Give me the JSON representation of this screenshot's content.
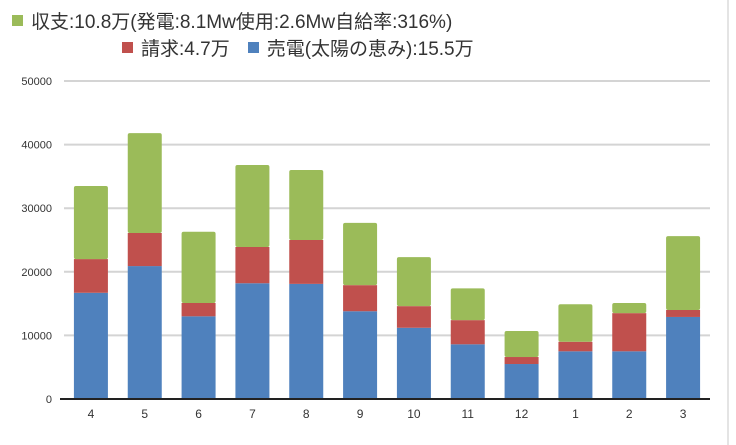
{
  "legend": {
    "green": "収支:10.8万(発電:8.1Mw使用:2.6Mw自給率:316%)",
    "red": "請求:4.7万",
    "blue": "売電(太陽の恵み):15.5万"
  },
  "colors": {
    "green": "#9bbb59",
    "red": "#c0504d",
    "blue": "#4f81bd",
    "grid": "#d4d4d4"
  },
  "chart_data": {
    "type": "bar",
    "stacked": true,
    "categories": [
      "4",
      "5",
      "6",
      "7",
      "8",
      "9",
      "10",
      "11",
      "12",
      "1",
      "2",
      "3"
    ],
    "series": [
      {
        "name": "売電(太陽の恵み):15.5万",
        "color": "blue",
        "values": [
          16700,
          20900,
          13000,
          18200,
          18100,
          13800,
          11200,
          8600,
          5500,
          7500,
          7500,
          12900
        ]
      },
      {
        "name": "請求:4.7万",
        "color": "red",
        "values": [
          5300,
          5200,
          2100,
          5700,
          6900,
          4100,
          3400,
          3800,
          1100,
          1500,
          6000,
          1100
        ]
      },
      {
        "name": "収支:10.8万(発電:8.1Mw使用:2.6Mw自給率:316%)",
        "color": "green",
        "values": [
          11500,
          15700,
          11200,
          12900,
          11000,
          9800,
          7700,
          5000,
          4100,
          5900,
          1600,
          11600
        ]
      }
    ],
    "yticks": [
      "0",
      "10000",
      "20000",
      "30000",
      "40000",
      "50000"
    ],
    "ylim": [
      0,
      50000
    ],
    "grid": true,
    "legend_position": "top"
  }
}
